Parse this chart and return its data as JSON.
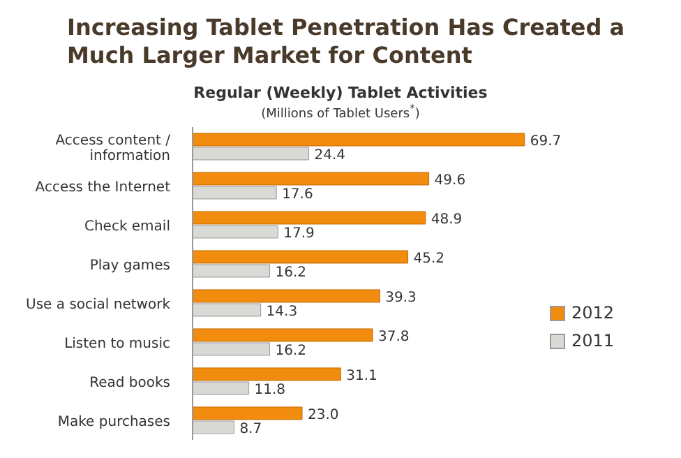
{
  "chart_data": {
    "type": "bar",
    "orientation": "horizontal",
    "title": "Increasing Tablet Penetration Has Created a Much Larger Market for Content",
    "subtitle": "Regular (Weekly) Tablet Activities",
    "annotations": [
      "(Millions of Tablet Users$^{*}$)"
    ],
    "categories": [
      "Access content / information",
      "Access the Internet",
      "Check email",
      "Play games",
      "Use a social network",
      "Listen to music",
      "Read books",
      "Make purchases"
    ],
    "series": [
      {
        "name": "2012",
        "color": "#f28c0f",
        "values": [
          69.7,
          49.6,
          48.9,
          45.2,
          39.3,
          37.8,
          31.1,
          23.0
        ],
        "value_labels": [
          "69.7",
          "49.6",
          "48.9",
          "45.2",
          "39.3",
          "37.8",
          "31.1",
          "23.0"
        ]
      },
      {
        "name": "2011",
        "color": "#d9d9d6",
        "values": [
          24.4,
          17.6,
          17.9,
          16.2,
          14.3,
          16.2,
          11.8,
          8.7
        ],
        "value_labels": [
          "24.4",
          "17.6",
          "17.9",
          "16.2",
          "14.3",
          "16.2",
          "11.8",
          "8.7"
        ]
      }
    ],
    "legend": "right",
    "tick_labels": "y"
  }
}
